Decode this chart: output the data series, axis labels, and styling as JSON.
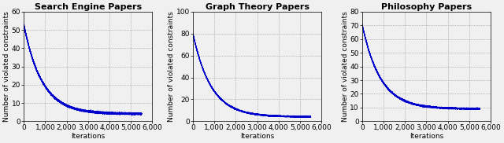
{
  "titles": [
    "Search Engine Papers",
    "Graph Theory Papers",
    "Philosophy Papers"
  ],
  "xlabel": "Iterations",
  "ylabel": "Number of violated constraints",
  "xticks": [
    0,
    1000,
    2000,
    3000,
    4000,
    5000,
    6000
  ],
  "xticklabels": [
    "0",
    "1,000",
    "2,000",
    "3,000",
    "4,000",
    "5,000",
    "6,000"
  ],
  "xlim": [
    0,
    5600
  ],
  "plots": [
    {
      "ylim": [
        0,
        60
      ],
      "yticks": [
        0,
        10,
        20,
        30,
        40,
        50,
        60
      ],
      "start_val": 53,
      "end_val": 4,
      "decay": 6.5
    },
    {
      "ylim": [
        0,
        100
      ],
      "yticks": [
        0,
        20,
        40,
        60,
        80,
        100
      ],
      "start_val": 80,
      "end_val": 4,
      "decay": 6.5
    },
    {
      "ylim": [
        0,
        80
      ],
      "yticks": [
        0,
        10,
        20,
        30,
        40,
        50,
        60,
        70,
        80
      ],
      "start_val": 71,
      "end_val": 9,
      "decay": 6.5
    }
  ],
  "line_color": "#0000cc",
  "line_width": 0.8,
  "grid_color": "#888888",
  "bg_color": "#f0f0f0",
  "title_fontsize": 8,
  "label_fontsize": 6.5,
  "tick_fontsize": 6.5
}
